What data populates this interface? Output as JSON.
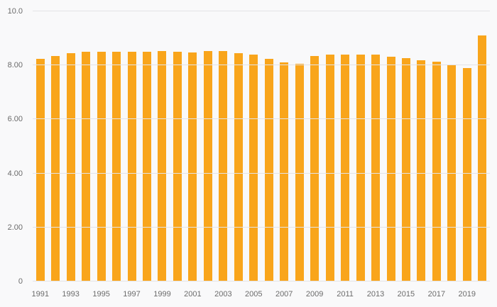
{
  "chart_data": {
    "type": "bar",
    "title": "",
    "xlabel": "",
    "ylabel": "",
    "categories": [
      "1991",
      "1992",
      "1993",
      "1994",
      "1995",
      "1996",
      "1997",
      "1998",
      "1999",
      "2000",
      "2001",
      "2002",
      "2003",
      "2004",
      "2005",
      "2006",
      "2007",
      "2008",
      "2009",
      "2010",
      "2011",
      "2012",
      "2013",
      "2014",
      "2015",
      "2016",
      "2017",
      "2018",
      "2019",
      "2020"
    ],
    "values": [
      8.25,
      8.35,
      8.45,
      8.5,
      8.5,
      8.5,
      8.5,
      8.5,
      8.52,
      8.5,
      8.47,
      8.52,
      8.52,
      8.45,
      8.4,
      8.25,
      8.1,
      8.05,
      8.35,
      8.4,
      8.4,
      8.4,
      8.4,
      8.32,
      8.28,
      8.2,
      8.15,
      8.0,
      7.9,
      9.1
    ],
    "ylim": [
      0,
      10
    ],
    "y_ticks": [
      {
        "value": 0,
        "label": "0"
      },
      {
        "value": 2,
        "label": "2.00"
      },
      {
        "value": 4,
        "label": "4.00"
      },
      {
        "value": 6,
        "label": "6.00"
      },
      {
        "value": 8,
        "label": "8.00"
      },
      {
        "value": 10,
        "label": "10.0"
      }
    ],
    "x_tick_labels": [
      "1991",
      "1993",
      "1995",
      "1997",
      "1999",
      "2001",
      "2003",
      "2005",
      "2007",
      "2009",
      "2011",
      "2013",
      "2015",
      "2017",
      "2019"
    ],
    "x_tick_every": 2,
    "grid": true,
    "legend": "none",
    "bar_color": "#F9A51B",
    "background_color": "#f9f9fa",
    "gridline_color": "#e4e4e6",
    "label_color": "#6b6b6b"
  }
}
